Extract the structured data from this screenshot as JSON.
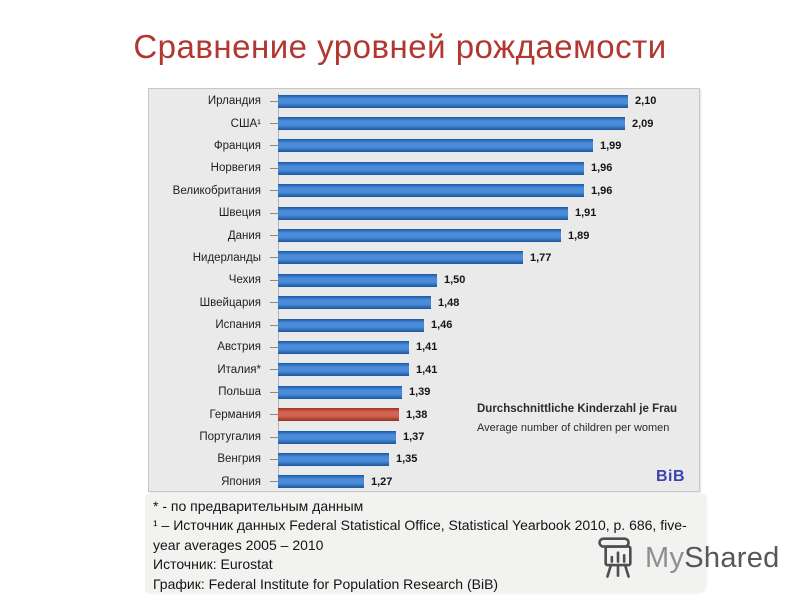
{
  "slide": {
    "title": "Сравнение уровней рождаемости",
    "title_color": "#b23730"
  },
  "chart_data": {
    "type": "bar",
    "orientation": "horizontal",
    "categories": [
      "Ирландия",
      "США¹",
      "Франция",
      "Норвегия",
      "Великобритания",
      "Швеция",
      "Дания",
      "Нидерланды",
      "Чехия",
      "Швейцария",
      "Испания",
      "Австрия",
      "Италия*",
      "Польша",
      "Германия",
      "Португалия",
      "Венгрия",
      "Япония"
    ],
    "values": [
      2.1,
      2.09,
      1.99,
      1.96,
      1.96,
      1.91,
      1.89,
      1.77,
      1.5,
      1.48,
      1.46,
      1.41,
      1.41,
      1.39,
      1.38,
      1.37,
      1.35,
      1.27
    ],
    "value_labels": [
      "2,10",
      "2,09",
      "1,99",
      "1,96",
      "1,96",
      "1,91",
      "1,89",
      "1,77",
      "1,50",
      "1,48",
      "1,46",
      "1,41",
      "1,41",
      "1,39",
      "1,38",
      "1,37",
      "1,35",
      "1,27"
    ],
    "highlight_index": 14,
    "highlight_category": "Германия",
    "xlim": [
      1.0,
      2.2
    ],
    "grid": false,
    "legend": false,
    "annotation": {
      "line1": "Durchschnittliche Kinderzahl je Frau",
      "line2": "Average number of children per women"
    },
    "source_logo": "BiB",
    "colors": {
      "bar": "#2273d2",
      "highlight": "#c9402b",
      "logo": "#3a43b0"
    }
  },
  "footnotes": {
    "line1": "* - по предварительным данным",
    "line2": "¹ – Источник данных Federal Statistical Office, Statistical Yearbook 2010, p. 686, five-year averages 2005 – 2010",
    "line3": "Источник: Eurostat",
    "line4": "График: Federal Institute for Population Research (BiB)"
  },
  "watermark": {
    "part1": "My",
    "part2": "Shared",
    "color1": "#8f8f8f",
    "color2": "#575757",
    "icon": "presentation-easel-icon"
  }
}
